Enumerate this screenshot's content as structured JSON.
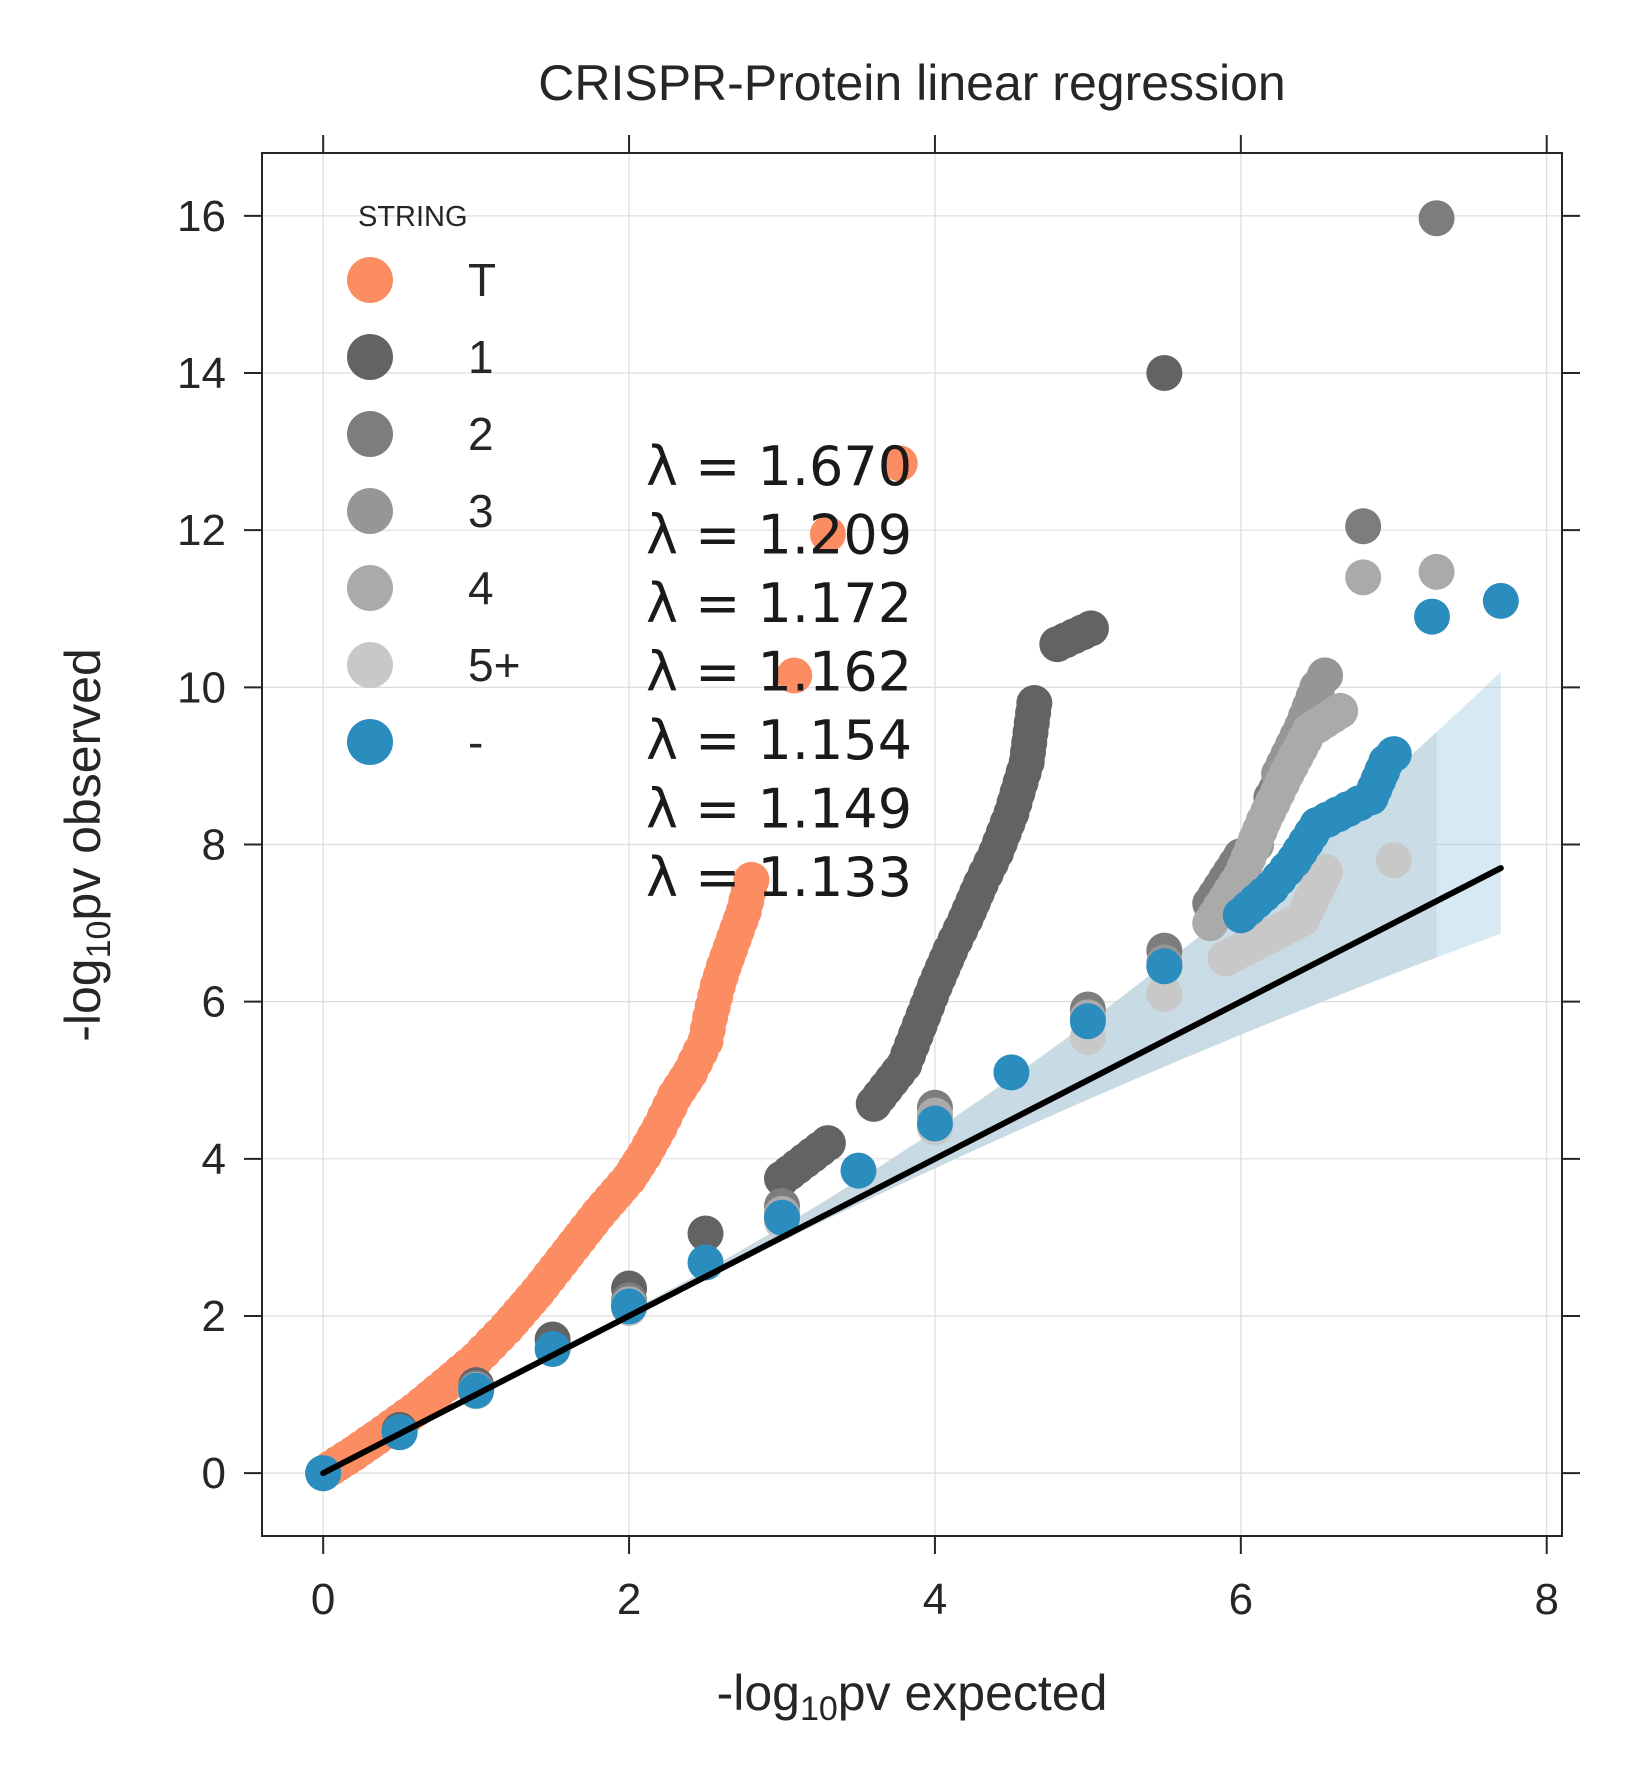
{
  "chart_data": {
    "type": "scatter",
    "title": "CRISPR-Protein linear regression",
    "xlabel": {
      "prefix": "-log",
      "sub": "10",
      "suffix": "pv expected"
    },
    "ylabel": {
      "prefix": "-log",
      "sub": "10",
      "suffix": "pv observed"
    },
    "xlim": [
      -0.4,
      8.1
    ],
    "ylim": [
      -0.8,
      16.8
    ],
    "xticks": [
      0,
      2,
      4,
      6,
      8
    ],
    "yticks": [
      0,
      2,
      4,
      6,
      8,
      10,
      12,
      14,
      16
    ],
    "grid": true,
    "legend": {
      "title": "STRING",
      "placement": "top-left",
      "entries": [
        "T",
        "1",
        "2",
        "3",
        "4",
        "5+",
        "-"
      ]
    },
    "reference_line": {
      "x": [
        0,
        7.7
      ],
      "y": [
        0,
        7.7
      ],
      "color": "#000000"
    },
    "lambdas": [
      "λ = 1.670",
      "λ = 1.209",
      "λ = 1.172",
      "λ = 1.162",
      "λ = 1.154",
      "λ = 1.149",
      "λ = 1.133"
    ],
    "series": [
      {
        "name": "T",
        "color": "#fc8d62",
        "band_color": "#fbb4ae",
        "band_end_x": 3.77,
        "x": [
          0,
          0.2,
          0.4,
          0.6,
          0.8,
          1.0,
          1.2,
          1.4,
          1.6,
          1.8,
          2.0,
          2.1,
          2.2,
          2.3,
          2.4,
          2.5,
          2.53,
          2.58,
          2.62,
          2.75,
          2.8,
          3.08,
          3.3,
          3.77
        ],
        "y": [
          0,
          0.25,
          0.52,
          0.8,
          1.12,
          1.45,
          1.85,
          2.3,
          2.8,
          3.3,
          3.75,
          4.05,
          4.4,
          4.8,
          5.1,
          5.5,
          5.8,
          6.2,
          6.45,
          7.15,
          7.55,
          10.15,
          11.95,
          12.85
        ]
      },
      {
        "name": "1",
        "color": "#636363",
        "band_color": "#d9d9d9",
        "band_end_x": 5.5,
        "x": [
          0,
          0.5,
          1.0,
          1.5,
          2.0,
          2.5,
          3.0,
          3.3,
          3.6,
          3.8,
          3.9,
          4.0,
          4.1,
          4.2,
          4.3,
          4.4,
          4.5,
          4.6,
          4.65,
          4.8,
          5.02,
          5.5
        ],
        "y": [
          0,
          0.55,
          1.12,
          1.7,
          2.35,
          3.05,
          3.75,
          4.2,
          4.7,
          5.2,
          5.7,
          6.2,
          6.65,
          7.05,
          7.5,
          7.9,
          8.4,
          9.05,
          9.8,
          10.55,
          10.75,
          14.0
        ]
      },
      {
        "name": "2",
        "color": "#7d7d7d",
        "band_color": "#d9d9d9",
        "band_end_x": 7.28,
        "x": [
          0,
          1.0,
          2.0,
          3.0,
          4.0,
          5.0,
          5.5,
          5.8,
          6.0,
          6.2,
          6.35,
          6.55,
          6.8,
          7.28
        ],
        "y": [
          0,
          1.08,
          2.2,
          3.4,
          4.65,
          5.9,
          6.65,
          7.25,
          7.85,
          8.6,
          9.1,
          10.15,
          12.05,
          15.97
        ]
      },
      {
        "name": "3",
        "color": "#969696",
        "band_color": "#d9d9d9",
        "band_end_x": 6.65,
        "x": [
          0,
          1.0,
          2.0,
          3.0,
          4.0,
          5.0,
          5.5,
          5.9,
          6.1,
          6.25,
          6.4,
          6.5,
          6.55
        ],
        "y": [
          0,
          1.06,
          2.15,
          3.3,
          4.55,
          5.8,
          6.5,
          7.2,
          8.0,
          8.9,
          9.5,
          10.0,
          10.15
        ]
      },
      {
        "name": "4",
        "color": "#aaaaaa",
        "band_color": "#e0e0e0",
        "band_end_x": 7.28,
        "x": [
          0,
          1.0,
          2.0,
          3.0,
          4.0,
          5.0,
          5.5,
          5.8,
          6.0,
          6.15,
          6.3,
          6.45,
          6.65,
          6.8,
          7.28
        ],
        "y": [
          0,
          1.06,
          2.15,
          3.3,
          4.55,
          5.8,
          6.45,
          7.0,
          7.6,
          8.3,
          8.9,
          9.45,
          9.7,
          11.4,
          11.47
        ]
      },
      {
        "name": "5+",
        "color": "#c8c8c8",
        "band_color": "#e8e8e8",
        "band_end_x": 7.0,
        "x": [
          0,
          1.0,
          2.0,
          3.0,
          4.0,
          5.0,
          5.5,
          5.9,
          6.2,
          6.4,
          6.55,
          7.0
        ],
        "y": [
          0,
          1.04,
          2.1,
          3.2,
          4.4,
          5.55,
          6.1,
          6.55,
          6.85,
          7.05,
          7.65,
          7.8
        ]
      },
      {
        "name": "-",
        "color": "#2b8cbe",
        "band_color": "#a6cee3",
        "band_end_x": 7.7,
        "x": [
          0,
          0.5,
          1.0,
          1.5,
          2.0,
          2.5,
          3.0,
          3.5,
          4.0,
          4.5,
          5.0,
          5.5,
          6.0,
          6.2,
          6.35,
          6.5,
          6.7,
          6.85,
          6.95,
          7.0,
          7.25,
          7.7
        ],
        "y": [
          0,
          0.52,
          1.05,
          1.58,
          2.12,
          2.68,
          3.25,
          3.85,
          4.45,
          5.1,
          5.75,
          6.45,
          7.1,
          7.45,
          7.8,
          8.25,
          8.45,
          8.6,
          9.05,
          9.15,
          10.9,
          11.1
        ]
      }
    ]
  }
}
